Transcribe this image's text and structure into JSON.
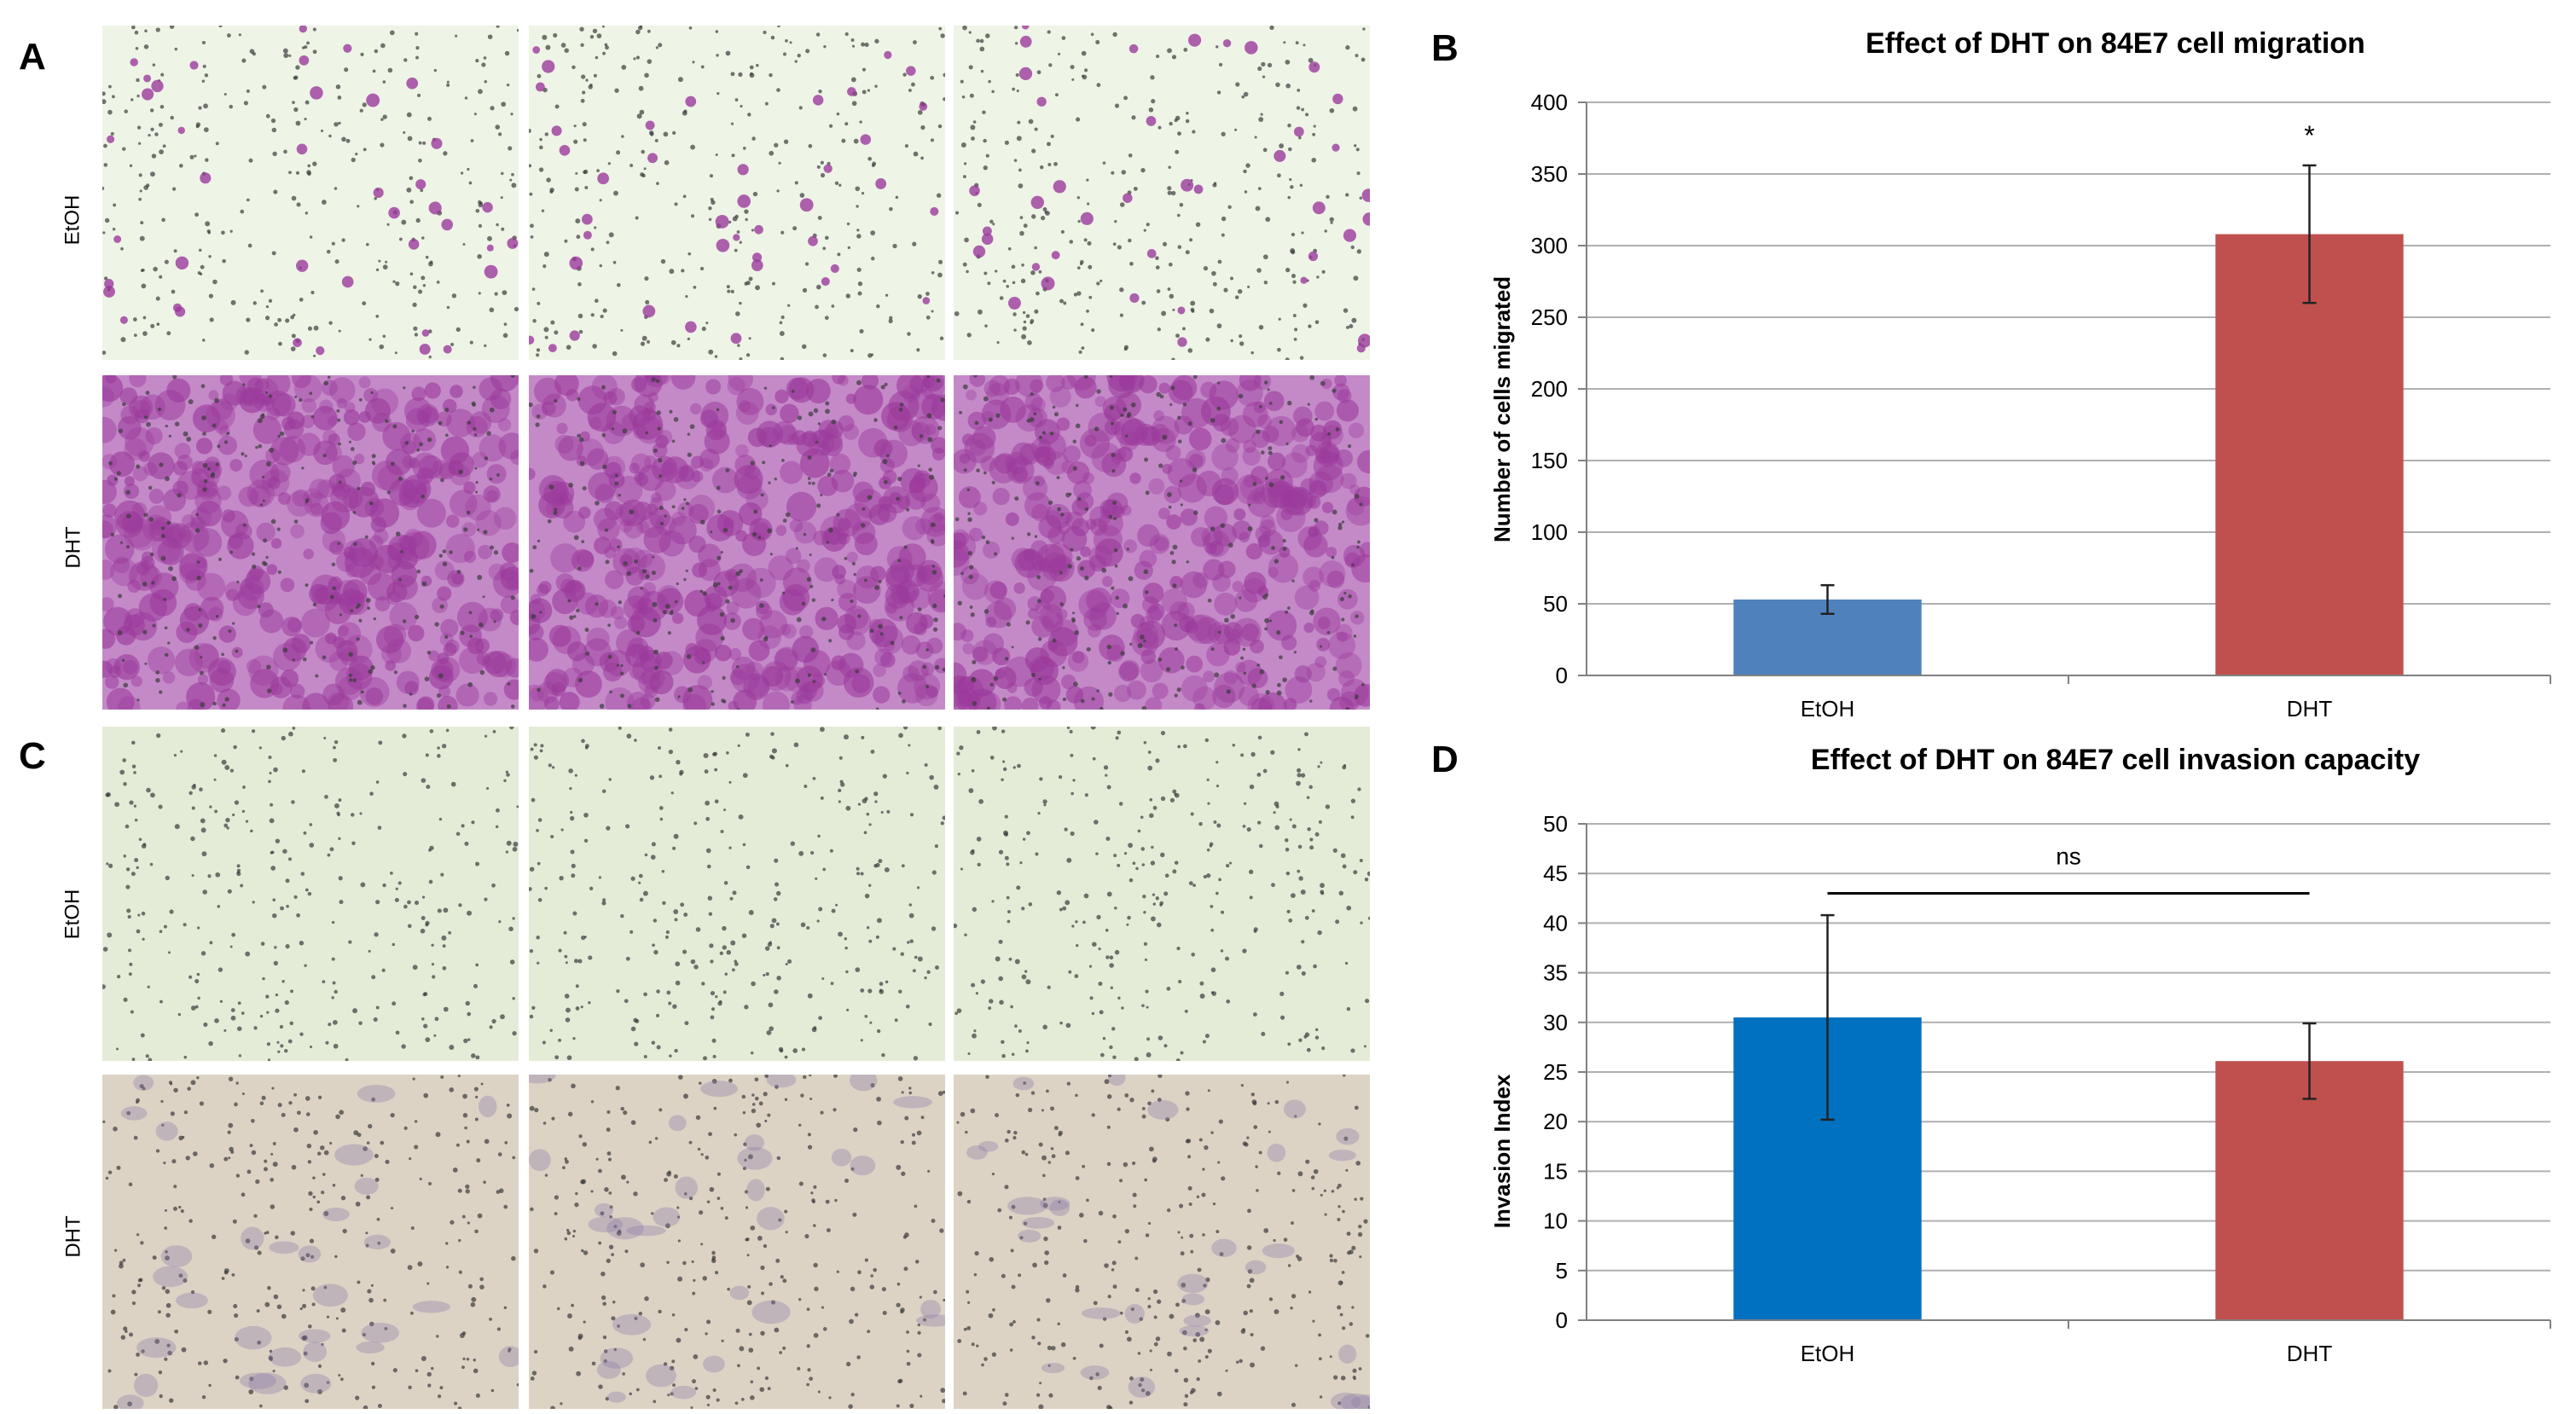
{
  "panels": {
    "a": {
      "letter": "A",
      "row_labels": [
        "EtOH",
        "DHT"
      ]
    },
    "b": {
      "letter": "B"
    },
    "c": {
      "letter": "C",
      "row_labels": [
        "EtOH",
        "DHT"
      ]
    },
    "d": {
      "letter": "D"
    }
  },
  "photo_colors": {
    "a_etoh": "#eef4e6",
    "a_dht": "#c48ac8",
    "c_etoh": "#e4ecd8",
    "c_dht": "#ddd3c5",
    "cell_purple": "#9b3a9c",
    "dot_dark": "#3a3a3a"
  },
  "chart_data": [
    {
      "type": "bar",
      "title": "Effect of DHT on 84E7 cell migration",
      "ylabel": "Number of cells migrated",
      "xlabel": "",
      "categories": [
        "EtOH",
        "DHT"
      ],
      "values": [
        53,
        308
      ],
      "errors": [
        10,
        48
      ],
      "colors": [
        "#4f81bd",
        "#c0504d"
      ],
      "ylim": [
        0,
        400
      ],
      "yticks": [
        0,
        50,
        100,
        150,
        200,
        250,
        300,
        350,
        400
      ],
      "annotations": [
        {
          "text": "*",
          "category": "DHT"
        }
      ],
      "grid": true
    },
    {
      "type": "bar",
      "title": "Effect of DHT on 84E7 cell invasion capacity",
      "ylabel": "Invasion Index",
      "xlabel": "",
      "categories": [
        "EtOH",
        "DHT"
      ],
      "values": [
        30.5,
        26.1
      ],
      "errors": [
        10.3,
        3.8
      ],
      "colors": [
        "#0070c0",
        "#c0504d"
      ],
      "ylim": [
        0,
        50
      ],
      "yticks": [
        0,
        5,
        10,
        15,
        20,
        25,
        30,
        35,
        40,
        45,
        50
      ],
      "annotations": [
        {
          "text": "ns",
          "type": "bracket",
          "between": [
            "EtOH",
            "DHT"
          ],
          "y": 43
        }
      ],
      "grid": true
    }
  ]
}
